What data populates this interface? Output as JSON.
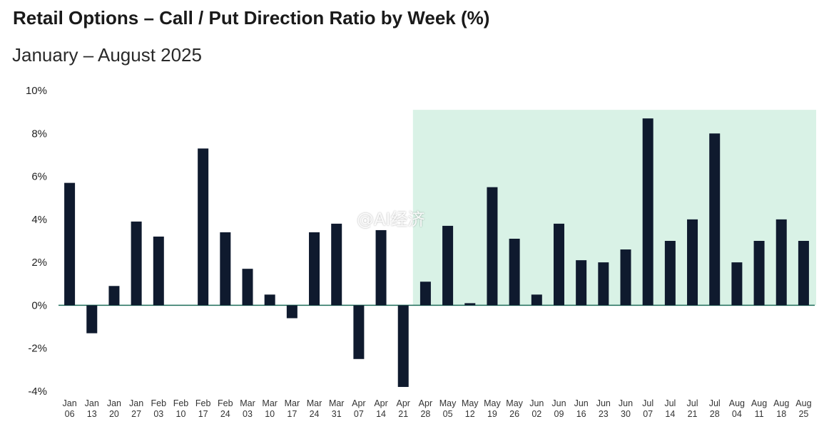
{
  "watermark": "@AI经济",
  "chart_data": {
    "type": "bar",
    "title": "Retail Options – Call / Put Direction Ratio by Week (%)",
    "subtitle": "January – August 2025",
    "xlabel": "",
    "ylabel": "",
    "ylim": [
      -4,
      10
    ],
    "yticks": [
      -4,
      -2,
      0,
      2,
      4,
      6,
      8,
      10
    ],
    "ytick_labels": [
      "-4%",
      "-2%",
      "0%",
      "2%",
      "4%",
      "6%",
      "8%",
      "10%"
    ],
    "grid": false,
    "legend": "none",
    "categories": [
      [
        "Jan",
        "06"
      ],
      [
        "Jan",
        "13"
      ],
      [
        "Jan",
        "20"
      ],
      [
        "Jan",
        "27"
      ],
      [
        "Feb",
        "03"
      ],
      [
        "Feb",
        "10"
      ],
      [
        "Feb",
        "17"
      ],
      [
        "Feb",
        "24"
      ],
      [
        "Mar",
        "03"
      ],
      [
        "Mar",
        "10"
      ],
      [
        "Mar",
        "17"
      ],
      [
        "Mar",
        "24"
      ],
      [
        "Mar",
        "31"
      ],
      [
        "Apr",
        "07"
      ],
      [
        "Apr",
        "14"
      ],
      [
        "Apr",
        "21"
      ],
      [
        "Apr",
        "28"
      ],
      [
        "May",
        "05"
      ],
      [
        "May",
        "12"
      ],
      [
        "May",
        "19"
      ],
      [
        "May",
        "26"
      ],
      [
        "Jun",
        "02"
      ],
      [
        "Jun",
        "09"
      ],
      [
        "Jun",
        "16"
      ],
      [
        "Jun",
        "23"
      ],
      [
        "Jun",
        "30"
      ],
      [
        "Jul",
        "07"
      ],
      [
        "Jul",
        "14"
      ],
      [
        "Jul",
        "21"
      ],
      [
        "Jul",
        "28"
      ],
      [
        "Aug",
        "04"
      ],
      [
        "Aug",
        "11"
      ],
      [
        "Aug",
        "18"
      ],
      [
        "Aug",
        "25"
      ]
    ],
    "values": [
      5.7,
      -1.3,
      0.9,
      3.9,
      3.2,
      0.0,
      7.3,
      3.4,
      1.7,
      0.5,
      -0.6,
      3.4,
      3.8,
      -2.5,
      3.5,
      -3.8,
      1.1,
      3.7,
      0.1,
      5.5,
      3.1,
      0.5,
      3.8,
      2.1,
      2.0,
      2.6,
      8.7,
      3.0,
      4.0,
      8.0,
      2.0,
      3.0,
      4.0,
      3.0
    ],
    "highlight": {
      "from_category": "Apr 28",
      "to_category": "Aug 25",
      "ymax": 9.1
    },
    "colors": {
      "bar": "#0f1a2e",
      "highlight": "#d9f2e6",
      "axis": "#1f6e5a"
    }
  }
}
